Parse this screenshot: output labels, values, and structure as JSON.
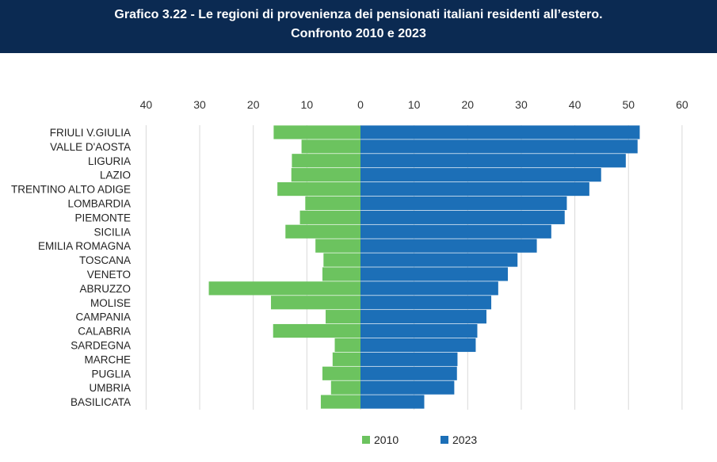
{
  "header": {
    "title_line1": "Grafico 3.22 - Le regioni di provenienza dei pensionati italiani residenti all’estero.",
    "title_line2": "Confronto 2010 e 2023"
  },
  "colors": {
    "header_bg": "#0b2a52",
    "series_2010": "#6cc35f",
    "series_2023": "#1c6fb7",
    "grid": "#d9d9d9"
  },
  "chart_data": {
    "type": "bar",
    "orientation": "horizontal-diverging",
    "title": "Grafico 3.22 - Le regioni di provenienza dei pensionati italiani residenti all’estero. Confronto 2010 e 2023",
    "categories": [
      "FRIULI V.GIULIA",
      "VALLE D'AOSTA",
      "LIGURIA",
      "LAZIO",
      "TRENTINO ALTO ADIGE",
      "LOMBARDIA",
      "PIEMONTE",
      "SICILIA",
      "EMILIA ROMAGNA",
      "TOSCANA",
      "VENETO",
      "ABRUZZO",
      "MOLISE",
      "CAMPANIA",
      "CALABRIA",
      "SARDEGNA",
      "MARCHE",
      "PUGLIA",
      "UMBRIA",
      "BASILICATA"
    ],
    "series": [
      {
        "name": "2010",
        "color": "#6cc35f",
        "side": "left",
        "values": [
          16.2,
          11.0,
          12.8,
          12.9,
          15.5,
          10.3,
          11.3,
          14.0,
          8.4,
          6.9,
          7.1,
          28.3,
          16.7,
          6.5,
          16.3,
          4.8,
          5.2,
          7.1,
          5.5,
          7.4
        ]
      },
      {
        "name": "2023",
        "color": "#1c6fb7",
        "side": "right",
        "values": [
          52.1,
          51.7,
          49.5,
          44.9,
          42.7,
          38.5,
          38.1,
          35.6,
          32.9,
          29.3,
          27.5,
          25.7,
          24.4,
          23.5,
          21.8,
          21.5,
          18.1,
          18.0,
          17.5,
          11.9
        ]
      }
    ],
    "x_ticks": [
      "40",
      "30",
      "20",
      "10",
      "0",
      "10",
      "20",
      "30",
      "40",
      "50",
      "60"
    ],
    "x_range": [
      -40,
      60
    ],
    "legend": [
      {
        "label": "2010",
        "color": "#6cc35f"
      },
      {
        "label": "2023",
        "color": "#1c6fb7"
      }
    ],
    "legend_position": "bottom-center",
    "grid": true
  }
}
